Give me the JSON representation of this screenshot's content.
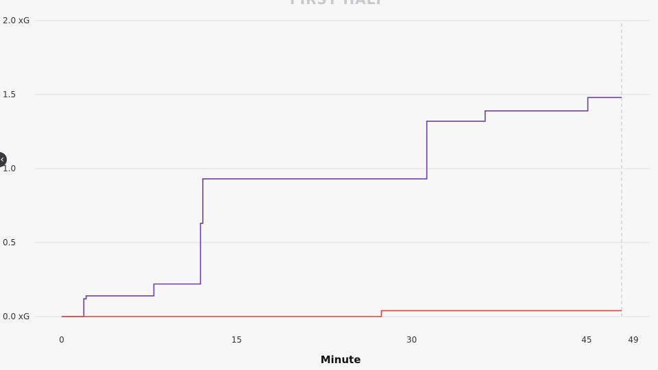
{
  "chart_data": {
    "type": "line",
    "step": true,
    "title": "FIRST HALF",
    "xlabel": "Minute",
    "ylabel": "",
    "xlim": [
      0,
      49
    ],
    "ylim": [
      0,
      2.0
    ],
    "xticks": [
      {
        "value": 0,
        "label": "0"
      },
      {
        "value": 15,
        "label": "15"
      },
      {
        "value": 30,
        "label": "30"
      },
      {
        "value": 45,
        "label": "45"
      },
      {
        "value": 49,
        "label": "49"
      }
    ],
    "yticks": [
      {
        "value": 0,
        "label": "0.0 xG"
      },
      {
        "value": 0.5,
        "label": "0.5"
      },
      {
        "value": 1.0,
        "label": "1.0"
      },
      {
        "value": 1.5,
        "label": "1.5"
      },
      {
        "value": 2.0,
        "label": "2.0 xG"
      }
    ],
    "grid": true,
    "end_marker_minute": 48,
    "series": [
      {
        "color": "#6a3fa0",
        "points": [
          [
            0,
            0
          ],
          [
            1.9,
            0
          ],
          [
            1.9,
            0.12
          ],
          [
            2.1,
            0.12
          ],
          [
            2.1,
            0.14
          ],
          [
            7.9,
            0.14
          ],
          [
            7.9,
            0.22
          ],
          [
            11.9,
            0.22
          ],
          [
            11.9,
            0.63
          ],
          [
            12.1,
            0.63
          ],
          [
            12.1,
            0.93
          ],
          [
            31.3,
            0.93
          ],
          [
            31.3,
            1.32
          ],
          [
            36.3,
            1.32
          ],
          [
            36.3,
            1.39
          ],
          [
            45.1,
            1.39
          ],
          [
            45.1,
            1.48
          ],
          [
            48,
            1.48
          ]
        ]
      },
      {
        "color": "#d9453d",
        "points": [
          [
            0,
            0
          ],
          [
            27.4,
            0
          ],
          [
            27.4,
            0.04
          ],
          [
            48,
            0.04
          ]
        ]
      }
    ]
  },
  "nav": {
    "handle_icon": "‹"
  }
}
